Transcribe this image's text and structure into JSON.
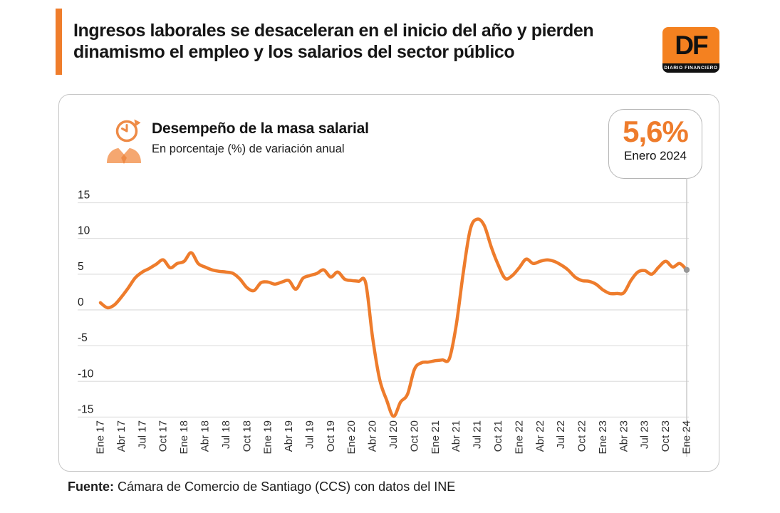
{
  "header": {
    "title_line1": "Ingresos laborales se desaceleran en el inicio del año y pierden",
    "title_line2": "dinamismo el empleo y los salarios del sector público",
    "logo": {
      "monogram": "DF",
      "tagline": "DIARIO FINANCIERO"
    }
  },
  "chart": {
    "title": "Desempeño de la masa salarial",
    "subtitle": "En porcentaje (%) de variación anual",
    "badge": {
      "value": "5,6%",
      "period": "Enero 2024"
    }
  },
  "footer": {
    "source_label": "Fuente:",
    "source_text": " Cámara de Comercio de Santiago (CCS) con datos del INE"
  },
  "colors": {
    "accent": "#ee7c2c",
    "line": "#ee7c2c",
    "grid": "#e1e1e1",
    "marker_line": "#c8c8c8",
    "end_dot": "#979797",
    "y_label": "#1f1f1f",
    "x_label": "#2e2e2e",
    "icon_light": "#f5a770",
    "icon_dark": "#ee8b47"
  },
  "chart_data": {
    "type": "line",
    "title": "Desempeño de la masa salarial",
    "subtitle": "En porcentaje (%) de variación anual",
    "series_name": "Masa salarial, variación anual (%)",
    "frequency": "monthly, Ene 2017 - Ene 2024",
    "x_tick_labels": [
      "Ene 17",
      "Abr 17",
      "Jul 17",
      "Oct 17",
      "Ene 18",
      "Abr 18",
      "Jul 18",
      "Oct 18",
      "Ene 19",
      "Abr 19",
      "Jul 19",
      "Oct 19",
      "Ene 20",
      "Abr 20",
      "Jul 20",
      "Oct 20",
      "Ene 21",
      "Abr 21",
      "Jul 21",
      "Oct 21",
      "Ene 22",
      "Abr 22",
      "Jul 22",
      "Oct 22",
      "Ene 23",
      "Abr 23",
      "Jul 23",
      "Oct 23",
      "Ene 24"
    ],
    "x_tick_every_n_points": 3,
    "values": [
      1.0,
      0.3,
      0.7,
      1.8,
      3.1,
      4.5,
      5.3,
      5.8,
      6.4,
      7.0,
      5.9,
      6.5,
      6.8,
      8.0,
      6.5,
      6.0,
      5.6,
      5.4,
      5.3,
      5.1,
      4.3,
      3.1,
      2.7,
      3.8,
      3.9,
      3.6,
      3.9,
      4.1,
      2.9,
      4.4,
      4.8,
      5.1,
      5.6,
      4.6,
      5.3,
      4.3,
      4.1,
      4.0,
      3.8,
      -3.9,
      -9.7,
      -12.6,
      -14.9,
      -12.9,
      -11.8,
      -8.3,
      -7.4,
      -7.3,
      -7.1,
      -7.0,
      -6.8,
      -2.0,
      5.3,
      11.3,
      12.7,
      11.8,
      8.8,
      6.3,
      4.4,
      4.8,
      5.9,
      7.1,
      6.5,
      6.8,
      7.0,
      6.8,
      6.3,
      5.6,
      4.6,
      4.1,
      4.0,
      3.6,
      2.8,
      2.3,
      2.3,
      2.4,
      4.1,
      5.3,
      5.5,
      5.0,
      6.0,
      6.8,
      6.0,
      6.5,
      5.6
    ],
    "y_ticks": [
      15,
      10,
      5,
      0,
      -5,
      -10,
      -15
    ],
    "ylim": [
      -15,
      15
    ],
    "grid": "horizontal only",
    "legend": "none",
    "highlight": {
      "value": "5,6%",
      "label": "Enero 2024",
      "point": "last (Ene 24)"
    }
  }
}
